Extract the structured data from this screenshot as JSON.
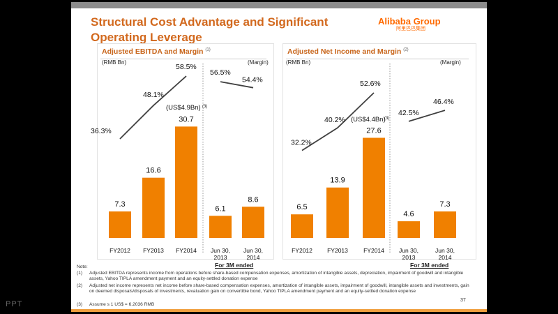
{
  "slide": {
    "title": "Structural Cost Advantage and Significant Operating Leverage",
    "logo": "Alibaba Group",
    "logo_cn": "阿里巴巴集团",
    "page_number": "37",
    "notes_label": "Note:",
    "notes": [
      {
        "num": "(1)",
        "text": "Adjusted EBITDA represents income from operations before share-based compensation expenses, amortization of intangible assets, depreciation, impairment of goodwill and intangible assets, Yahoo TIPLA amendment payment and an equity-settled donation expense"
      },
      {
        "num": "(2)",
        "text": "Adjusted net income represents net income before share-based compensation expenses, amortization of intangible assets, impairment of goodwill, intangible assets and investments, gain on deemed disposals/disposals of investments, revaluation gain on convertible bond, Yahoo TIPLA amendment payment and an equity-settled donation expense"
      },
      {
        "num": "(3)",
        "text": "Assume s 1 US$ = 6.2036 RMB"
      }
    ],
    "watermark": "PPT",
    "colors": {
      "bar": "#f08000",
      "title": "#d2691e",
      "line": "#404040"
    }
  },
  "chart_data": [
    {
      "type": "bar",
      "title": "Adjusted EBITDA and Margin",
      "title_note": "(1)",
      "ylabel": "(RMB Bn)",
      "y2label": "(Margin)",
      "categories": [
        "FY2012",
        "FY2013",
        "FY2014",
        "Jun 30, 2013",
        "Jun 30, 2014"
      ],
      "group_label": "For 3M ended",
      "values": [
        7.3,
        16.6,
        30.7,
        6.1,
        8.6
      ],
      "value_labels": [
        "7.3",
        "16.6",
        "30.7",
        "6.1",
        "8.6"
      ],
      "margin": [
        36.3,
        48.1,
        58.5,
        56.5,
        54.4
      ],
      "margin_labels": [
        "36.3%",
        "48.1%",
        "58.5%",
        "56.5%",
        "54.4%"
      ],
      "annotation": "(US$4.9Bn)",
      "annotation_note": "(3)"
    },
    {
      "type": "bar",
      "title": "Adjusted Net Income and Margin",
      "title_note": "(2)",
      "ylabel": "(RMB Bn)",
      "y2label": "(Margin)",
      "categories": [
        "FY2012",
        "FY2013",
        "FY2014",
        "Jun 30, 2013",
        "Jun 30, 2014"
      ],
      "group_label": "For 3M ended",
      "values": [
        6.5,
        13.9,
        27.6,
        4.6,
        7.3
      ],
      "value_labels": [
        "6.5",
        "13.9",
        "27.6",
        "4.6",
        "7.3"
      ],
      "margin": [
        32.2,
        40.2,
        52.6,
        42.5,
        46.4
      ],
      "margin_labels": [
        "32.2%",
        "40.2%",
        "52.6%",
        "42.5%",
        "46.4%"
      ],
      "annotation": "(US$4.4Bn)",
      "annotation_note": "(3)"
    }
  ]
}
